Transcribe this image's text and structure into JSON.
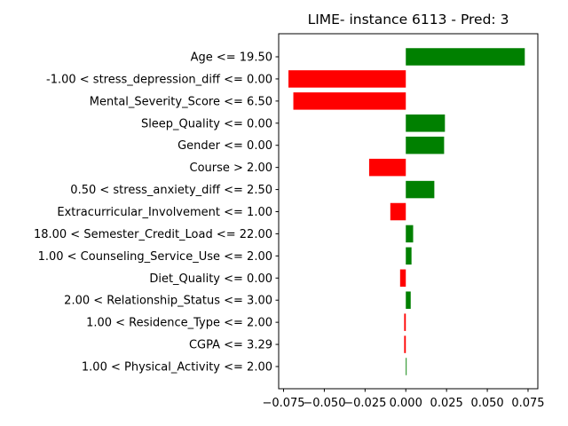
{
  "chart_data": {
    "type": "bar",
    "orientation": "horizontal",
    "title": "LIME- instance 6113 - Pred: 3",
    "xlabel": "",
    "ylabel": "",
    "xlim": [
      -0.078,
      0.081
    ],
    "xticks": [
      -0.075,
      -0.05,
      -0.025,
      0.0,
      0.025,
      0.05,
      0.075
    ],
    "xtick_labels": [
      "−0.075",
      "−0.050",
      "−0.025",
      "0.000",
      "0.025",
      "0.050",
      "0.075"
    ],
    "grid": false,
    "legend": "none",
    "positive_color": "#008000",
    "negative_color": "#ff0000",
    "categories": [
      "Age <= 19.50",
      "-1.00 < stress_depression_diff <= 0.00",
      "Mental_Severity_Score <= 6.50",
      "Sleep_Quality <= 0.00",
      "Gender <= 0.00",
      "Course > 2.00",
      "0.50 < stress_anxiety_diff <= 2.50",
      "Extracurricular_Involvement <= 1.00",
      "18.00 < Semester_Credit_Load <= 22.00",
      "1.00 < Counseling_Service_Use <= 2.00",
      "Diet_Quality <= 0.00",
      "2.00 < Relationship_Status <= 3.00",
      "1.00 < Residence_Type <= 2.00",
      "CGPA <= 3.29",
      "1.00 < Physical_Activity <= 2.00"
    ],
    "values": [
      0.073,
      -0.072,
      -0.069,
      0.024,
      0.0235,
      -0.0225,
      0.0175,
      -0.0095,
      0.0045,
      0.0035,
      -0.0035,
      0.003,
      -0.001,
      -0.001,
      0.0005
    ]
  }
}
